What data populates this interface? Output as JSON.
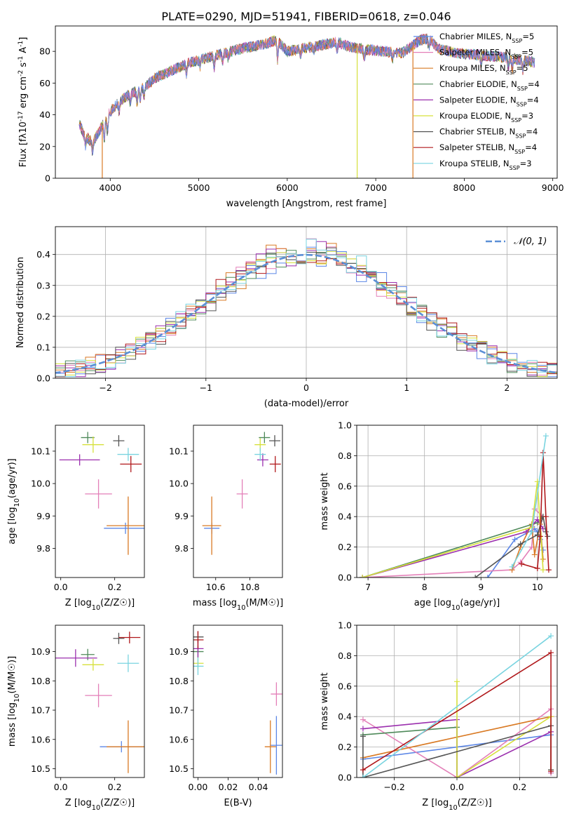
{
  "title": "PLATE=0290, MJD=51941, FIBERID=0618, z=0.046",
  "colors": {
    "Chabrier MILES": "#5b86e6",
    "Salpeter MILES": "#e37fb8",
    "Kroupa MILES": "#d97a24",
    "Chabrier ELODIE": "#4f8a5a",
    "Salpeter ELODIE": "#9b2fae",
    "Kroupa ELODIE": "#d6e03b",
    "Chabrier STELIB": "#555555",
    "Salpeter STELIB": "#b0181b",
    "Kroupa STELIB": "#79d4e0"
  },
  "chart_data": [
    {
      "type": "line",
      "panel": "spectrum",
      "title": "PLATE=0290, MJD=51941, FIBERID=0618, z=0.046",
      "xlabel": "wavelength [Angstrom, rest frame]",
      "ylabel": "Flux [fλ10^-17 erg cm^-2 s^-1 A^-1]",
      "xlim": [
        3380,
        9050
      ],
      "ylim": [
        0,
        96
      ],
      "xticks": [
        4000,
        5000,
        6000,
        7000,
        8000,
        9000
      ],
      "yticks": [
        0,
        20,
        40,
        60,
        80
      ],
      "legend_loc": "right",
      "legend": [
        "Chabrier MILES, N_SSP=5",
        "Salpeter MILES, N_SSP=5",
        "Kroupa MILES, N_SSP=5",
        "Chabrier ELODIE, N_SSP=4",
        "Salpeter ELODIE, N_SSP=4",
        "Kroupa ELODIE, N_SSP=3",
        "Chabrier STELIB, N_SSP=4",
        "Salpeter STELIB, N_SSP=4",
        "Kroupa STELIB, N_SSP=3"
      ],
      "continuum": {
        "x": [
          3650,
          3700,
          3800,
          3880,
          3950,
          4000,
          4100,
          4200,
          4300,
          4400,
          4500,
          4700,
          4900,
          5100,
          5300,
          5500,
          5700,
          5890,
          6000,
          6200,
          6400,
          6560,
          6700,
          6900,
          7100,
          7300,
          7500,
          7600,
          7700,
          7900,
          8100,
          8300,
          8500,
          8700,
          8800
        ],
        "y": [
          35,
          28,
          22,
          30,
          38,
          42,
          48,
          52,
          55,
          58,
          63,
          68,
          73,
          76,
          79,
          82,
          84,
          87,
          80,
          82,
          84,
          86,
          83,
          81,
          80,
          79,
          87,
          88,
          82,
          79,
          78,
          77,
          76,
          74,
          73
        ]
      },
      "drops": [
        {
          "series": "Kroupa MILES",
          "x": 3910
        },
        {
          "series": "Kroupa ELODIE",
          "x": 6790
        },
        {
          "series": "Kroupa MILES",
          "x": 7420
        }
      ]
    },
    {
      "type": "histogram",
      "panel": "residuals",
      "xlabel": "(data-model)/error",
      "ylabel": "Normed distribution",
      "xlim": [
        -2.5,
        2.5
      ],
      "ylim": [
        0,
        0.49
      ],
      "xticks": [
        -2,
        -1,
        0,
        1,
        2
      ],
      "yticks": [
        0.0,
        0.1,
        0.2,
        0.3,
        0.4
      ],
      "bin_width": 0.1,
      "reference": {
        "label": "𝒩(0, 1)",
        "mu": 0,
        "sigma": 1,
        "color": "#5b8fd6"
      },
      "legend_loc": "upper right"
    },
    {
      "type": "scatter",
      "panel": "age-vs-Z",
      "xlabel": "Z [log10(Z/Z☉)]",
      "ylabel": "age  [log10(age/yr)]",
      "xlim": [
        -0.02,
        0.31
      ],
      "ylim": [
        9.71,
        10.18
      ],
      "xticks": [
        0.0,
        0.2
      ],
      "yticks": [
        9.8,
        9.9,
        10.0,
        10.1
      ],
      "points": [
        {
          "series": "Chabrier MILES",
          "x": 0.24,
          "y": 9.862,
          "xerr": 0.08,
          "yerr": 0.0
        },
        {
          "series": "Salpeter MILES",
          "x": 0.14,
          "y": 9.968,
          "xerr": 0.05,
          "yerr": 0.045
        },
        {
          "series": "Kroupa MILES",
          "x": 0.25,
          "y": 9.87,
          "xerr": 0.08,
          "yerr": 0.09
        },
        {
          "series": "Chabrier ELODIE",
          "x": 0.1,
          "y": 10.142,
          "xerr": 0.025,
          "yerr": 0.0
        },
        {
          "series": "Salpeter ELODIE",
          "x": 0.07,
          "y": 10.073,
          "xerr": 0.075,
          "yerr": 0.0
        },
        {
          "series": "Kroupa ELODIE",
          "x": 0.12,
          "y": 10.12,
          "xerr": 0.04,
          "yerr": 0.025
        },
        {
          "series": "Chabrier STELIB",
          "x": 0.215,
          "y": 10.132,
          "xerr": 0.02,
          "yerr": 0.01
        },
        {
          "series": "Salpeter STELIB",
          "x": 0.26,
          "y": 10.06,
          "xerr": 0.04,
          "yerr": 0.025
        },
        {
          "series": "Kroupa STELIB",
          "x": 0.25,
          "y": 10.09,
          "xerr": 0.04,
          "yerr": 0.02
        }
      ]
    },
    {
      "type": "scatter",
      "panel": "age-vs-mass",
      "xlabel": "mass [log10(M/M☉)]",
      "ylabel": "",
      "xlim": [
        10.47,
        10.99
      ],
      "ylim": [
        9.71,
        10.18
      ],
      "xticks": [
        10.6,
        10.8
      ],
      "yticks": [
        9.8,
        9.9,
        10.0,
        10.1
      ],
      "points": [
        {
          "series": "Chabrier MILES",
          "x": 10.577,
          "y": 9.862,
          "xerr": 0.045,
          "yerr": 0.0
        },
        {
          "series": "Salpeter MILES",
          "x": 10.755,
          "y": 9.968,
          "xerr": 0.025,
          "yerr": 0.045
        },
        {
          "series": "Kroupa MILES",
          "x": 10.577,
          "y": 9.87,
          "xerr": 0.055,
          "yerr": 0.09
        },
        {
          "series": "Chabrier ELODIE",
          "x": 10.885,
          "y": 10.142,
          "xerr": 0.0,
          "yerr": 0.0
        },
        {
          "series": "Salpeter ELODIE",
          "x": 10.875,
          "y": 10.073,
          "xerr": 0.0,
          "yerr": 0.02
        },
        {
          "series": "Kroupa ELODIE",
          "x": 10.86,
          "y": 10.12,
          "xerr": 0.0,
          "yerr": 0.02
        },
        {
          "series": "Chabrier STELIB",
          "x": 10.945,
          "y": 10.132,
          "xerr": 0.01,
          "yerr": 0.01
        },
        {
          "series": "Salpeter STELIB",
          "x": 10.948,
          "y": 10.06,
          "xerr": 0.02,
          "yerr": 0.025
        },
        {
          "series": "Kroupa STELIB",
          "x": 10.86,
          "y": 10.09,
          "xerr": 0.01,
          "yerr": 0.02
        }
      ]
    },
    {
      "type": "line",
      "panel": "mass-weight-vs-age",
      "xlabel": "age  [log10(age/yr)]",
      "ylabel": "mass weight",
      "xlim": [
        6.8,
        10.35
      ],
      "ylim": [
        0.0,
        1.0
      ],
      "xticks": [
        7,
        8,
        9,
        10
      ],
      "yticks": [
        0.0,
        0.2,
        0.4,
        0.6,
        0.8,
        1.0
      ],
      "series": [
        {
          "name": "Chabrier MILES",
          "x": [
            9.12,
            9.6,
            9.95,
            10.0,
            10.05,
            10.1
          ],
          "y": [
            0.0,
            0.25,
            0.32,
            0.3,
            0.25,
            0.18
          ]
        },
        {
          "name": "Salpeter MILES",
          "x": [
            6.9,
            9.55,
            9.7,
            9.9,
            9.95,
            10.1
          ],
          "y": [
            0.0,
            0.05,
            0.1,
            0.2,
            0.45,
            0.4
          ]
        },
        {
          "name": "Kroupa MILES",
          "x": [
            9.55,
            9.7,
            9.9,
            9.95,
            10.05,
            10.1
          ],
          "y": [
            0.05,
            0.2,
            0.35,
            0.15,
            0.35,
            0.12
          ]
        },
        {
          "name": "Chabrier ELODIE",
          "x": [
            6.9,
            10.0,
            10.1
          ],
          "y": [
            0.0,
            0.36,
            0.4
          ]
        },
        {
          "name": "Salpeter ELODIE",
          "x": [
            6.9,
            9.8,
            10.0,
            10.1
          ],
          "y": [
            0.0,
            0.3,
            0.38,
            0.32
          ]
        },
        {
          "name": "Kroupa ELODIE",
          "x": [
            6.9,
            9.9,
            10.0,
            10.1
          ],
          "y": [
            0.0,
            0.33,
            0.63,
            0.05
          ]
        },
        {
          "name": "Chabrier STELIB",
          "x": [
            8.9,
            9.7,
            10.0,
            10.1,
            10.15,
            10.18
          ],
          "y": [
            0.0,
            0.22,
            0.28,
            0.4,
            0.3,
            0.27
          ]
        },
        {
          "name": "Salpeter STELIB",
          "x": [
            9.72,
            10.0,
            10.05,
            10.1,
            10.15,
            10.2
          ],
          "y": [
            0.09,
            0.06,
            0.27,
            0.82,
            0.4,
            0.05
          ]
        },
        {
          "name": "Kroupa STELIB",
          "x": [
            9.55,
            9.9,
            10.15
          ],
          "y": [
            0.07,
            0.3,
            0.93
          ]
        }
      ]
    },
    {
      "type": "scatter",
      "panel": "mass-vs-Z",
      "xlabel": "Z [log10(Z/Z☉)]",
      "ylabel": "mass [log10(M/M☉)]",
      "xlim": [
        -0.02,
        0.31
      ],
      "ylim": [
        10.47,
        10.99
      ],
      "xticks": [
        0.0,
        0.2
      ],
      "yticks": [
        10.5,
        10.6,
        10.7,
        10.8,
        10.9
      ],
      "points": [
        {
          "series": "Chabrier MILES",
          "x": 0.225,
          "y": 10.575,
          "xerr": 0.08,
          "yerr": 0.0
        },
        {
          "series": "Salpeter MILES",
          "x": 0.14,
          "y": 10.75,
          "xerr": 0.05,
          "yerr": 0.04
        },
        {
          "series": "Kroupa MILES",
          "x": 0.25,
          "y": 10.575,
          "xerr": 0.08,
          "yerr": 0.09
        },
        {
          "series": "Chabrier ELODIE",
          "x": 0.1,
          "y": 10.89,
          "xerr": 0.025,
          "yerr": 0.0
        },
        {
          "series": "Salpeter ELODIE",
          "x": 0.055,
          "y": 10.878,
          "xerr": 0.08,
          "yerr": 0.03
        },
        {
          "series": "Kroupa ELODIE",
          "x": 0.12,
          "y": 10.855,
          "xerr": 0.04,
          "yerr": 0.02
        },
        {
          "series": "Chabrier STELIB",
          "x": 0.215,
          "y": 10.945,
          "xerr": 0.02,
          "yerr": 0.01
        },
        {
          "series": "Salpeter STELIB",
          "x": 0.255,
          "y": 10.948,
          "xerr": 0.04,
          "yerr": 0.02
        },
        {
          "series": "Kroupa STELIB",
          "x": 0.25,
          "y": 10.86,
          "xerr": 0.04,
          "yerr": 0.03
        }
      ]
    },
    {
      "type": "scatter",
      "panel": "mass-vs-EBV",
      "xlabel": "E(B-V)",
      "ylabel": "",
      "xlim": [
        -0.003,
        0.056
      ],
      "ylim": [
        10.47,
        10.99
      ],
      "xticks": [
        0.0,
        0.02,
        0.04
      ],
      "yticks": [
        10.5,
        10.6,
        10.7,
        10.8,
        10.9
      ],
      "points": [
        {
          "series": "Chabrier MILES",
          "x": 0.052,
          "y": 10.58,
          "xerr": 0.0,
          "yerr": 0.1
        },
        {
          "series": "Salpeter MILES",
          "x": 0.052,
          "y": 10.755,
          "xerr": 0.0,
          "yerr": 0.04
        },
        {
          "series": "Kroupa MILES",
          "x": 0.048,
          "y": 10.575,
          "xerr": 0.0,
          "yerr": 0.09
        },
        {
          "series": "Chabrier ELODIE",
          "x": 0.0,
          "y": 10.9,
          "xerr": 0.0,
          "yerr": 0.02
        },
        {
          "series": "Salpeter ELODIE",
          "x": 0.0,
          "y": 10.91,
          "xerr": 0.0,
          "yerr": 0.03
        },
        {
          "series": "Kroupa ELODIE",
          "x": 0.0,
          "y": 10.86,
          "xerr": 0.0,
          "yerr": 0.02
        },
        {
          "series": "Chabrier STELIB",
          "x": 0.0,
          "y": 10.95,
          "xerr": 0.0,
          "yerr": 0.01
        },
        {
          "series": "Salpeter STELIB",
          "x": 0.0,
          "y": 10.94,
          "xerr": 0.0,
          "yerr": 0.03
        },
        {
          "series": "Kroupa STELIB",
          "x": 0.0,
          "y": 10.85,
          "xerr": 0.0,
          "yerr": 0.03
        }
      ]
    },
    {
      "type": "line",
      "panel": "mass-weight-vs-Z",
      "xlabel": "Z [log10(Z/Z☉)]",
      "ylabel": "mass weight",
      "xlim": [
        -0.32,
        0.32
      ],
      "ylim": [
        0.0,
        1.0
      ],
      "xticks": [
        -0.2,
        0.0,
        0.2
      ],
      "yticks": [
        0.0,
        0.2,
        0.4,
        0.6,
        0.8,
        1.0
      ],
      "series": [
        {
          "name": "Chabrier MILES",
          "x": [
            -0.3,
            0.3,
            0.3
          ],
          "y": [
            0.12,
            0.28,
            0.03
          ]
        },
        {
          "name": "Salpeter MILES",
          "x": [
            -0.3,
            0.0,
            0.3,
            0.3
          ],
          "y": [
            0.38,
            0.0,
            0.45,
            0.03
          ]
        },
        {
          "name": "Kroupa MILES",
          "x": [
            -0.3,
            0.3,
            0.3
          ],
          "y": [
            0.13,
            0.4,
            0.05
          ]
        },
        {
          "name": "Chabrier ELODIE",
          "x": [
            -0.3,
            0.0,
            0.0
          ],
          "y": [
            0.28,
            0.33,
            0.0
          ]
        },
        {
          "name": "Salpeter ELODIE",
          "x": [
            -0.3,
            0.0,
            0.0,
            0.3,
            0.3
          ],
          "y": [
            0.32,
            0.38,
            0.0,
            0.3,
            0.05
          ]
        },
        {
          "name": "Kroupa ELODIE",
          "x": [
            0.0,
            0.0,
            0.3,
            0.3
          ],
          "y": [
            0.63,
            0.0,
            0.4,
            0.05
          ]
        },
        {
          "name": "Chabrier STELIB",
          "x": [
            -0.3,
            -0.3,
            0.3,
            0.3
          ],
          "y": [
            0.27,
            0.0,
            0.34,
            0.05
          ]
        },
        {
          "name": "Salpeter STELIB",
          "x": [
            -0.3,
            0.3,
            0.3
          ],
          "y": [
            0.05,
            0.82,
            0.04
          ]
        },
        {
          "name": "Kroupa STELIB",
          "x": [
            -0.3,
            0.3
          ],
          "y": [
            0.0,
            0.93
          ]
        }
      ]
    }
  ]
}
